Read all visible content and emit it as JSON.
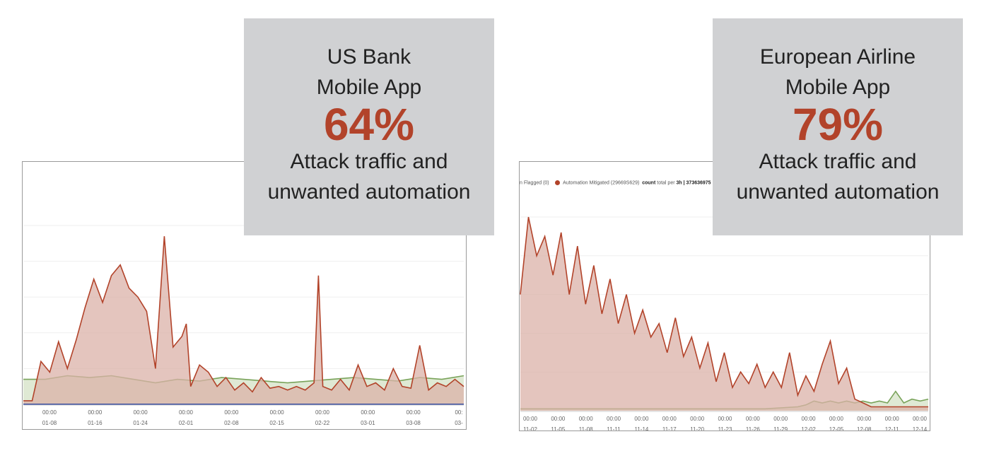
{
  "colors": {
    "attack": "#b2432a",
    "attack_fill": "#dbb2a8",
    "human": "#79a35a",
    "human_fill": "#dbe7cf",
    "baseline": "#3b4fa0",
    "callout_bg": "#d0d1d3"
  },
  "callouts": [
    {
      "line1": "US Bank",
      "line2": "Mobile App",
      "percent": "64%",
      "line3": "Attack traffic and",
      "line4": "unwanted automation"
    },
    {
      "line1": "European Airline",
      "line2": "Mobile App",
      "percent": "79%",
      "line3": "Attack traffic and",
      "line4": "unwanted automation"
    }
  ],
  "legend_right": {
    "item1": "n Flagged (0)",
    "item2": "Automation Mitigated (29669S629)",
    "count_label": "count",
    "total_text": "total per",
    "interval": "3h",
    "total_value": "| 373636975"
  },
  "chart_data": [
    {
      "type": "area",
      "x_ticks_time": [
        "00:00",
        "00:00",
        "00:00",
        "00:00",
        "00:00",
        "00:00",
        "00:00",
        "00:00",
        "00:00",
        "00:"
      ],
      "x_ticks_date": [
        "01-08",
        "01-16",
        "01-24",
        "02-01",
        "02-08",
        "02-15",
        "02-22",
        "03-01",
        "03-08",
        "03-"
      ],
      "ylim": [
        0,
        100
      ],
      "series": [
        {
          "name": "",
          "role": "attack",
          "x": [
            0,
            2,
            4,
            6,
            8,
            10,
            12,
            14,
            16,
            18,
            20,
            22,
            24,
            26,
            28,
            30,
            32,
            34,
            36,
            37,
            38,
            40,
            42,
            44,
            46,
            48,
            50,
            52,
            54,
            56,
            58,
            60,
            62,
            64,
            66,
            67,
            68,
            70,
            72,
            74,
            76,
            78,
            80,
            82,
            84,
            86,
            88,
            90,
            92,
            94,
            96,
            98,
            100
          ],
          "values": [
            2,
            2,
            24,
            18,
            35,
            20,
            36,
            54,
            70,
            57,
            72,
            78,
            65,
            60,
            52,
            20,
            94,
            32,
            38,
            45,
            10,
            22,
            18,
            10,
            15,
            8,
            12,
            7,
            15,
            9,
            10,
            8,
            10,
            8,
            12,
            72,
            10,
            8,
            14,
            8,
            22,
            10,
            12,
            8,
            20,
            10,
            9,
            33,
            8,
            12,
            10,
            14,
            10
          ]
        },
        {
          "name": "",
          "role": "human",
          "x": [
            0,
            5,
            10,
            15,
            20,
            25,
            30,
            35,
            40,
            45,
            50,
            55,
            60,
            65,
            70,
            75,
            80,
            85,
            90,
            95,
            100
          ],
          "values": [
            14,
            14,
            16,
            15,
            16,
            14,
            12,
            14,
            13,
            15,
            14,
            13,
            12,
            13,
            14,
            15,
            14,
            13,
            15,
            14,
            16
          ]
        }
      ]
    },
    {
      "type": "area",
      "x_ticks_time": [
        "00:00",
        "00:00",
        "00:00",
        "00:00",
        "00:00",
        "00:00",
        "00:00",
        "00:00",
        "00:00",
        "00:00",
        "00:00",
        "00:00",
        "00:00",
        "00:00",
        "00:00"
      ],
      "x_ticks_date": [
        "11-02",
        "11-05",
        "11-08",
        "11-11",
        "11-14",
        "11-17",
        "11-20",
        "11-23",
        "11-26",
        "11-29",
        "12-02",
        "12-05",
        "12-08",
        "12-11",
        "12-14"
      ],
      "ylim": [
        0,
        100
      ],
      "series": [
        {
          "name": "Automation Mitigated (29669S629)",
          "role": "attack",
          "x": [
            0,
            2,
            4,
            6,
            8,
            10,
            12,
            14,
            16,
            18,
            20,
            22,
            24,
            26,
            28,
            30,
            32,
            34,
            36,
            38,
            40,
            42,
            44,
            46,
            48,
            50,
            52,
            54,
            56,
            58,
            60,
            62,
            64,
            66,
            68,
            70,
            72,
            74,
            76,
            78,
            80,
            82,
            84,
            86,
            88,
            90,
            92,
            94,
            96,
            98,
            100
          ],
          "values": [
            60,
            100,
            80,
            90,
            70,
            92,
            60,
            85,
            55,
            75,
            50,
            68,
            45,
            60,
            40,
            52,
            38,
            45,
            30,
            48,
            28,
            38,
            22,
            35,
            15,
            30,
            12,
            20,
            14,
            24,
            12,
            20,
            12,
            30,
            8,
            18,
            10,
            24,
            36,
            14,
            22,
            6,
            4,
            2,
            2,
            2,
            2,
            2,
            2,
            2,
            2
          ]
        },
        {
          "name": "",
          "role": "human",
          "x": [
            0,
            10,
            20,
            30,
            40,
            50,
            60,
            68,
            70,
            72,
            74,
            76,
            78,
            80,
            82,
            84,
            86,
            88,
            90,
            92,
            94,
            96,
            98,
            100
          ],
          "values": [
            1,
            1,
            1,
            1,
            1,
            1,
            1,
            2,
            3,
            5,
            4,
            5,
            4,
            5,
            4,
            5,
            4,
            5,
            4,
            10,
            4,
            6,
            5,
            6
          ]
        }
      ]
    }
  ]
}
